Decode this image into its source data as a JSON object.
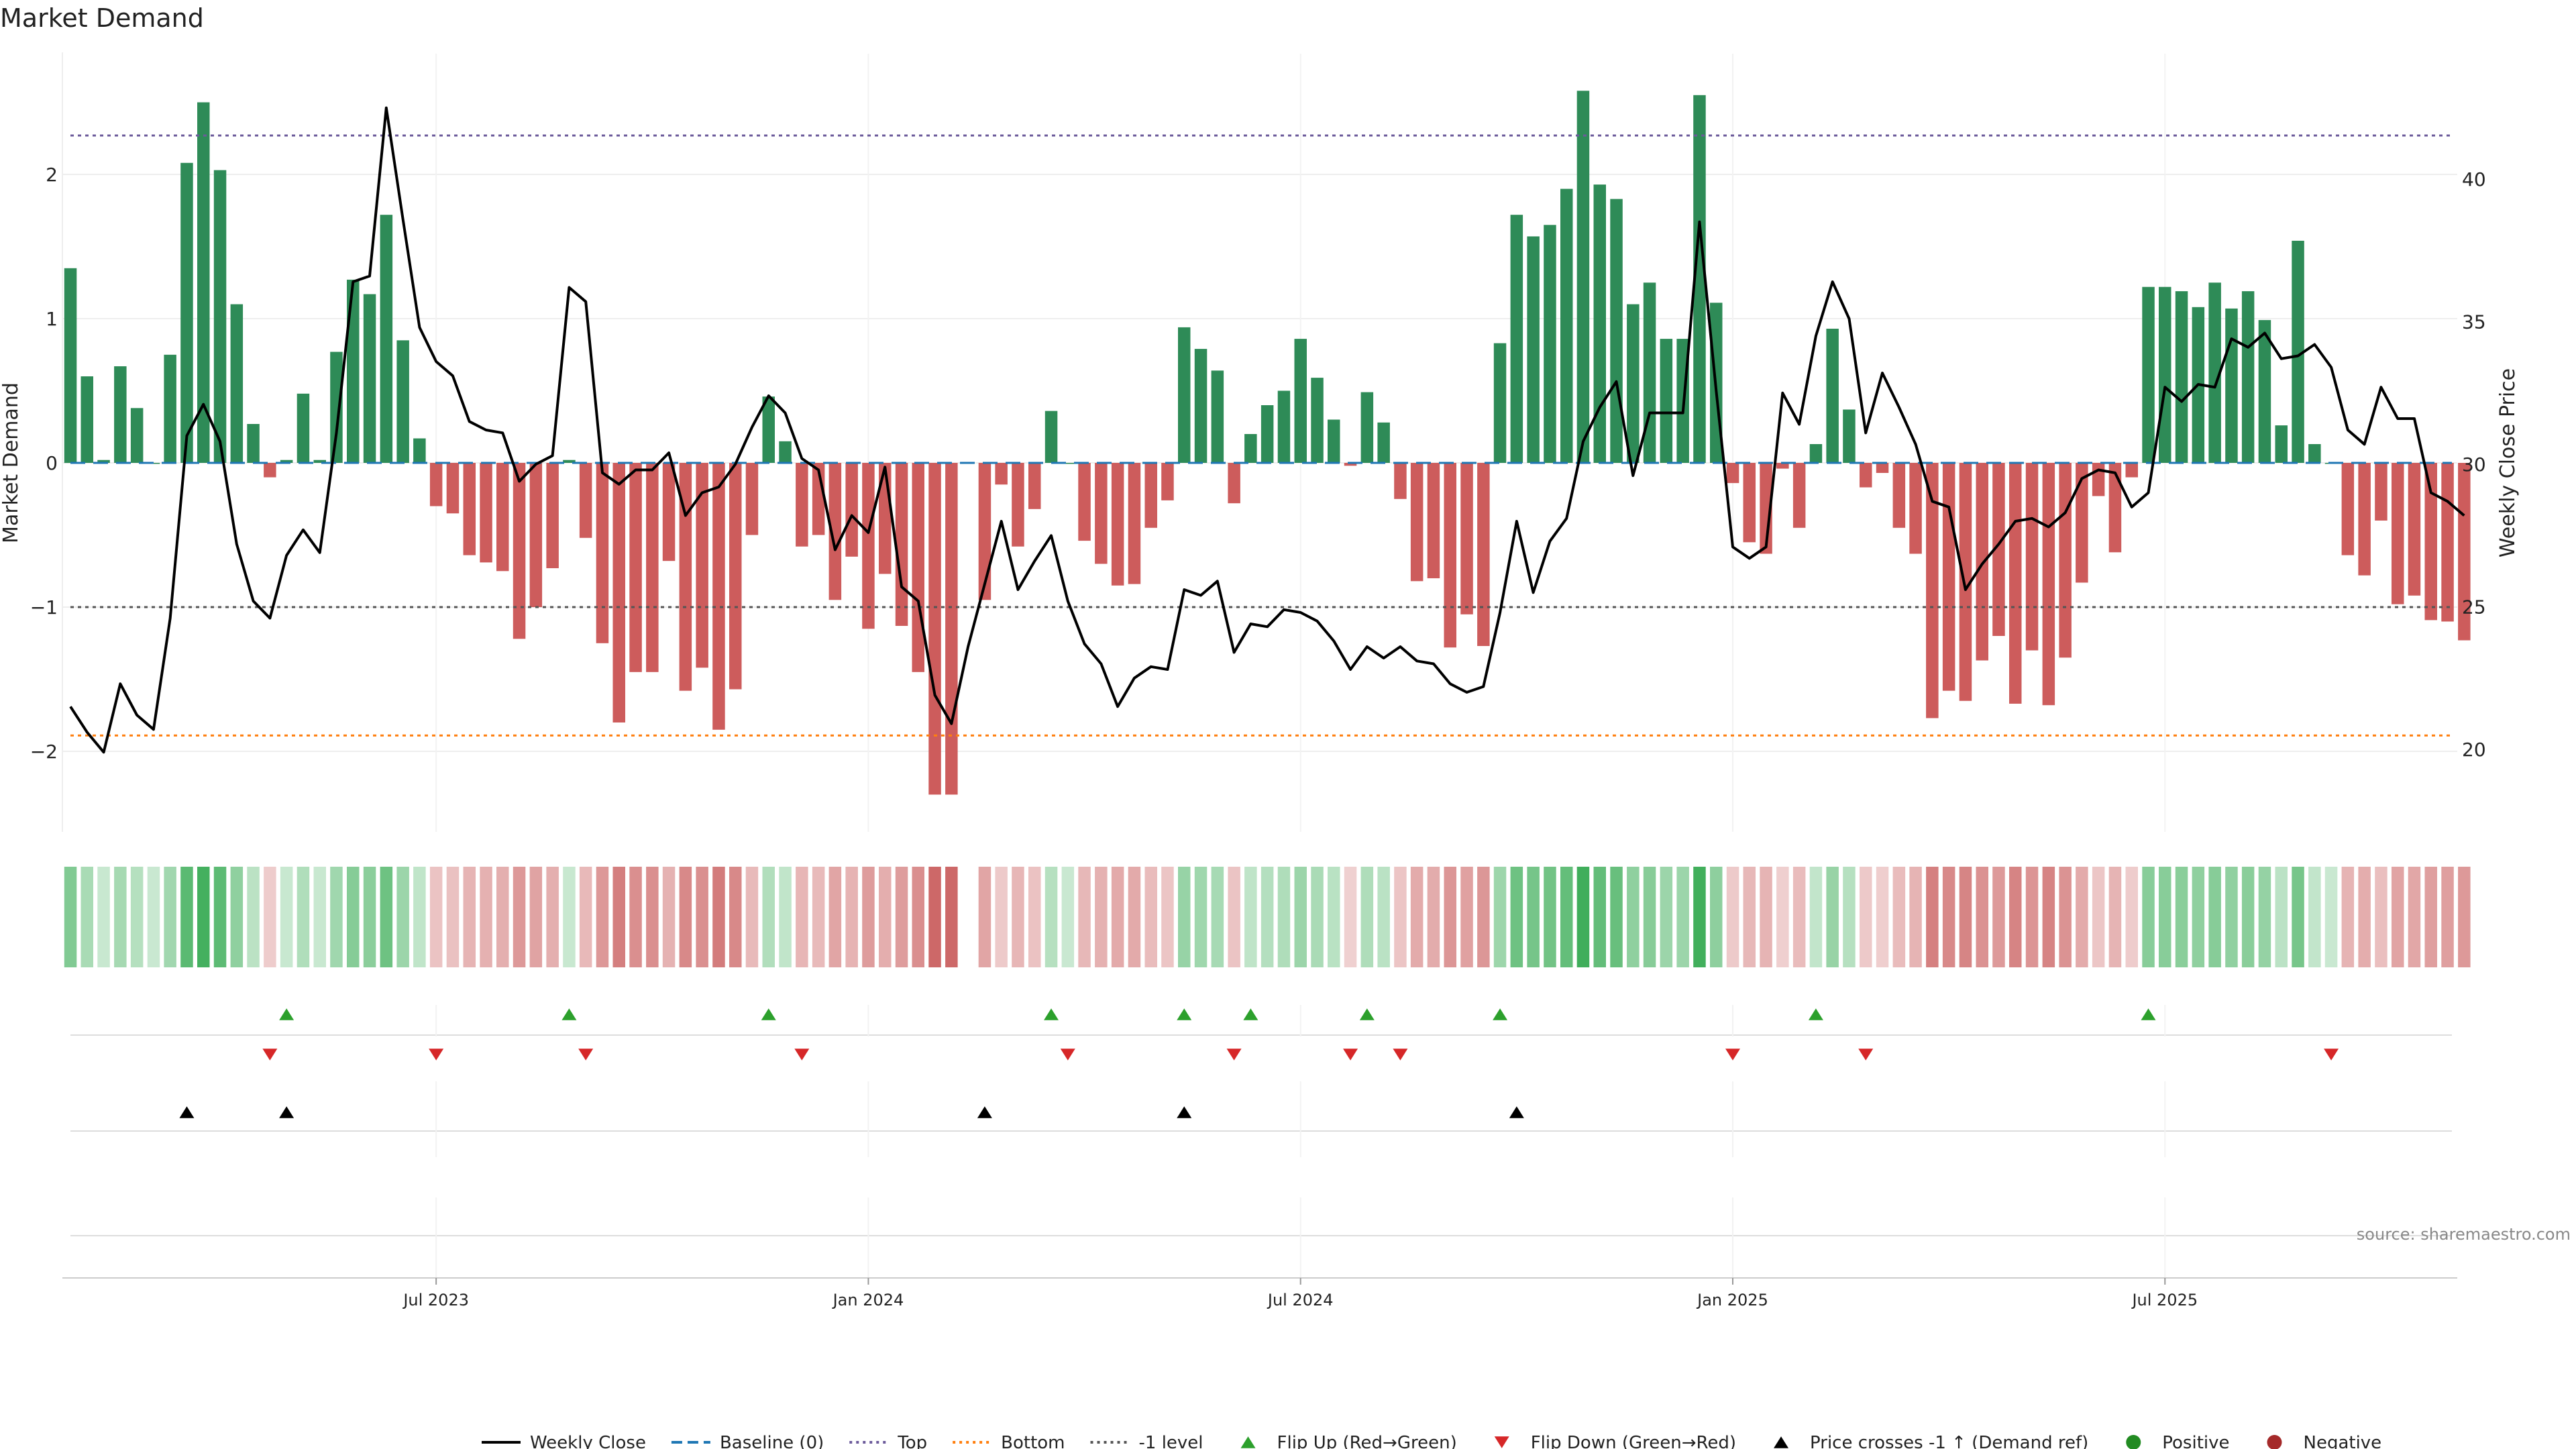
{
  "chart_data": {
    "type": "bar",
    "title": "Market Demand",
    "ylabel_left": "Market Demand",
    "ylabel_right": "Weekly Close Price",
    "y_left_range": [
      -2.55,
      2.6
    ],
    "y_right_range": [
      18.2,
      43.7
    ],
    "y_left_ticks": [
      {
        "v": 2,
        "label": "2"
      },
      {
        "v": 1,
        "label": "1"
      },
      {
        "v": 0,
        "label": "0"
      },
      {
        "v": -1,
        "label": "−1"
      },
      {
        "v": -2,
        "label": "−2"
      }
    ],
    "y_right_ticks": [
      {
        "v": 40,
        "label": "40"
      },
      {
        "v": 35,
        "label": "35"
      },
      {
        "v": 30,
        "label": "30"
      },
      {
        "v": 25,
        "label": "25"
      },
      {
        "v": 20,
        "label": "20"
      }
    ],
    "x_ticks": [
      {
        "i": 22,
        "label": "Jul 2023"
      },
      {
        "i": 48,
        "label": "Jan 2024"
      },
      {
        "i": 74,
        "label": "Jul 2024"
      },
      {
        "i": 100,
        "label": "Jan 2025"
      },
      {
        "i": 126,
        "label": "Jul 2025"
      }
    ],
    "reference_lines": {
      "top": 2.27,
      "bottom": -1.89,
      "minus_one": -1
    },
    "colors": {
      "positive": "#2e8b57",
      "negative": "#cd5c5c",
      "line": "#000000",
      "baseline": "#1f77b4",
      "top": "#6c5b9b",
      "bottom": "#ff7f0e",
      "minus_one": "#555555",
      "flip_up": "#2ca02c",
      "flip_down": "#d62728",
      "price_cross": "#000000",
      "legend_pos": "#228b22",
      "legend_neg": "#a52a2a"
    },
    "demand": [
      1.35,
      0.6,
      0.02,
      0.67,
      0.38,
      0.0,
      0.75,
      2.08,
      2.5,
      2.03,
      1.1,
      0.27,
      -0.1,
      0.02,
      0.48,
      0.02,
      0.77,
      1.27,
      1.17,
      1.72,
      0.85,
      0.17,
      -0.3,
      -0.35,
      -0.64,
      -0.69,
      -0.75,
      -1.22,
      -1.0,
      -0.73,
      0.02,
      -0.52,
      -1.25,
      -1.8,
      -1.45,
      -1.45,
      -0.68,
      -1.58,
      -1.42,
      -1.85,
      -1.57,
      -0.5,
      0.46,
      0.15,
      -0.58,
      -0.5,
      -0.95,
      -0.65,
      -1.15,
      -0.77,
      -1.13,
      -1.45,
      -2.3,
      -2.3,
      null,
      -0.95,
      -0.15,
      -0.58,
      -0.32,
      0.36,
      0.0,
      -0.54,
      -0.7,
      -0.85,
      -0.84,
      -0.45,
      -0.26,
      0.94,
      0.79,
      0.64,
      -0.28,
      0.2,
      0.4,
      0.5,
      0.86,
      0.59,
      0.3,
      -0.02,
      0.49,
      0.28,
      -0.25,
      -0.82,
      -0.8,
      -1.28,
      -1.05,
      -1.27,
      0.83,
      1.72,
      1.57,
      1.65,
      1.9,
      2.58,
      1.93,
      1.83,
      1.1,
      1.25,
      0.86,
      0.86,
      2.55,
      1.11,
      -0.14,
      -0.55,
      -0.63,
      -0.04,
      -0.45,
      0.13,
      0.93,
      0.37,
      -0.17,
      -0.07,
      -0.45,
      -0.63,
      -1.77,
      -1.58,
      -1.65,
      -1.37,
      -1.2,
      -1.67,
      -1.3,
      -1.68,
      -1.35,
      -0.83,
      -0.23,
      -0.62,
      -0.1,
      1.22,
      1.22,
      1.19,
      1.08,
      1.25,
      1.07,
      1.19,
      0.99,
      0.26,
      1.54,
      0.13,
      0.0,
      -0.64,
      -0.78,
      -0.4,
      -0.98,
      -0.92,
      -1.09,
      -1.1,
      -1.23
    ],
    "weekly_close": [
      21.5,
      20.6,
      19.9,
      22.3,
      21.2,
      20.7,
      24.6,
      31.0,
      32.1,
      30.8,
      27.2,
      25.2,
      24.6,
      26.8,
      27.7,
      26.9,
      31.1,
      36.4,
      36.6,
      42.5,
      38.6,
      34.8,
      33.6,
      33.1,
      31.5,
      31.2,
      31.1,
      29.4,
      30.0,
      30.3,
      36.2,
      35.7,
      29.7,
      29.3,
      29.8,
      29.8,
      30.4,
      28.2,
      29.0,
      29.2,
      30.0,
      31.3,
      32.4,
      31.8,
      30.2,
      29.8,
      27.0,
      28.2,
      27.6,
      29.9,
      25.7,
      25.2,
      21.9,
      20.9,
      23.6,
      25.8,
      28.0,
      25.6,
      26.6,
      27.5,
      25.2,
      23.7,
      23.0,
      21.5,
      22.5,
      22.9,
      22.8,
      25.6,
      25.4,
      25.9,
      23.4,
      24.4,
      24.3,
      24.9,
      24.8,
      24.5,
      23.8,
      22.8,
      23.6,
      23.2,
      23.6,
      23.1,
      23.0,
      22.3,
      22.0,
      22.2,
      24.8,
      28.0,
      25.5,
      27.3,
      28.1,
      30.8,
      32.0,
      32.9,
      29.6,
      31.8,
      31.8,
      31.8,
      38.5,
      32.6,
      27.1,
      26.7,
      27.1,
      32.5,
      31.4,
      34.5,
      36.4,
      35.1,
      31.1,
      33.2,
      32.0,
      30.7,
      28.7,
      28.5,
      25.6,
      26.5,
      27.2,
      28.0,
      28.1,
      27.8,
      28.3,
      29.5,
      29.8,
      29.7,
      28.5,
      29.0,
      32.7,
      32.2,
      32.8,
      32.7,
      34.4,
      34.1,
      34.6,
      33.7,
      33.8,
      34.2,
      33.4,
      31.2,
      30.7,
      32.7,
      31.6,
      31.6,
      29.0,
      28.7,
      28.2
    ],
    "flip_up_idx": [
      13,
      30,
      42,
      59,
      67,
      71,
      78,
      86,
      105,
      125
    ],
    "flip_down_idx": [
      12,
      22,
      31,
      44,
      60,
      70,
      77,
      80,
      100,
      108,
      136
    ],
    "price_cross_idx": [
      7,
      13,
      55,
      67,
      87
    ],
    "source": "source: sharemaestro.com",
    "legend": [
      {
        "label": "Weekly Close",
        "kind": "solid",
        "color": "#000000"
      },
      {
        "label": "Baseline (0)",
        "kind": "dashed",
        "color": "#1f77b4"
      },
      {
        "label": "Top",
        "kind": "dotted",
        "color": "#6c5b9b"
      },
      {
        "label": "Bottom",
        "kind": "dotted",
        "color": "#ff7f0e"
      },
      {
        "label": "-1 level",
        "kind": "dotted",
        "color": "#555555"
      },
      {
        "label": "Flip Up (Red→Green)",
        "kind": "tri-up",
        "color": "#2ca02c"
      },
      {
        "label": "Flip Down (Green→Red)",
        "kind": "tri-down",
        "color": "#d62728"
      },
      {
        "label": "Price crosses -1 ↑ (Demand ref)",
        "kind": "tri-up",
        "color": "#000000"
      },
      {
        "label": "Positive",
        "kind": "dot",
        "color": "#228b22"
      },
      {
        "label": "Negative",
        "kind": "dot",
        "color": "#a52a2a"
      }
    ]
  }
}
